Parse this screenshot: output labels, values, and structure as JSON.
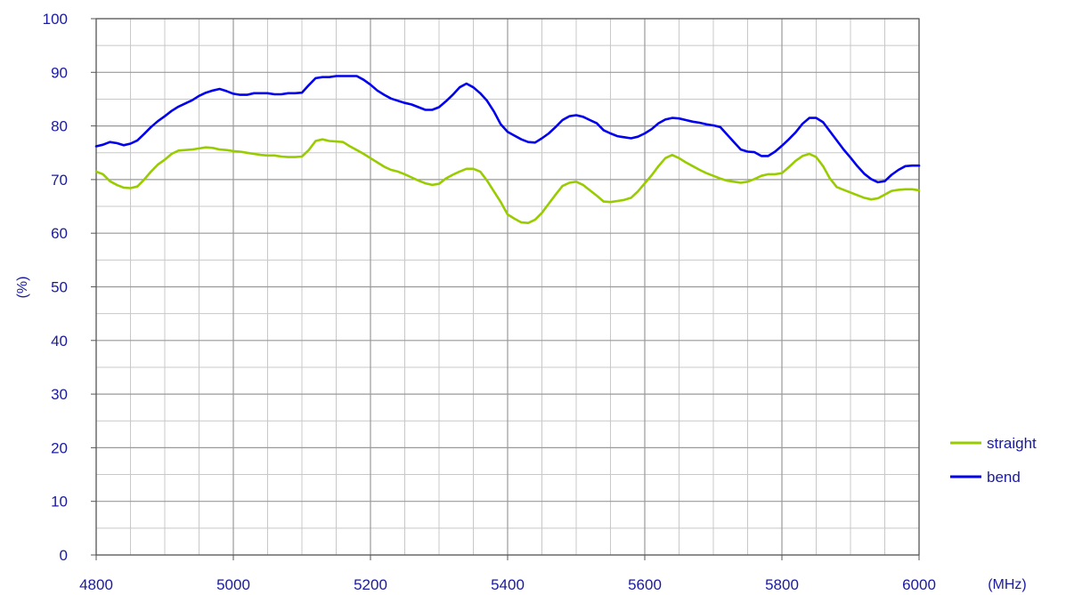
{
  "chart_data": {
    "type": "line",
    "xlabel": "(MHz)",
    "ylabel": "(%)",
    "xlim": [
      4800,
      6000
    ],
    "ylim": [
      0,
      100
    ],
    "x_ticks": [
      4800,
      5000,
      5200,
      5400,
      5600,
      5800,
      6000
    ],
    "y_ticks": [
      0,
      10,
      20,
      30,
      40,
      50,
      60,
      70,
      80,
      90,
      100
    ],
    "x_minor_step": 50,
    "y_minor_step": 5,
    "grid": true,
    "legend_position": "right",
    "series": [
      {
        "name": "straight",
        "color": "#99cc00",
        "x": [
          4800,
          4810,
          4820,
          4830,
          4840,
          4850,
          4860,
          4870,
          4880,
          4890,
          4900,
          4910,
          4920,
          4930,
          4940,
          4950,
          4960,
          4970,
          4980,
          4990,
          5000,
          5010,
          5020,
          5030,
          5040,
          5050,
          5060,
          5070,
          5080,
          5090,
          5100,
          5110,
          5120,
          5130,
          5140,
          5150,
          5160,
          5170,
          5180,
          5190,
          5200,
          5210,
          5220,
          5230,
          5240,
          5250,
          5260,
          5270,
          5280,
          5290,
          5300,
          5310,
          5320,
          5330,
          5340,
          5350,
          5360,
          5370,
          5380,
          5390,
          5400,
          5410,
          5420,
          5430,
          5440,
          5450,
          5460,
          5470,
          5480,
          5490,
          5500,
          5510,
          5520,
          5530,
          5540,
          5550,
          5560,
          5570,
          5580,
          5590,
          5600,
          5610,
          5620,
          5630,
          5640,
          5650,
          5660,
          5670,
          5680,
          5690,
          5700,
          5710,
          5720,
          5730,
          5740,
          5750,
          5760,
          5770,
          5780,
          5790,
          5800,
          5810,
          5820,
          5830,
          5840,
          5850,
          5860,
          5870,
          5880,
          5890,
          5900,
          5910,
          5920,
          5930,
          5940,
          5950,
          5960,
          5970,
          5980,
          5990,
          6000
        ],
        "values": [
          71.5,
          71,
          69.7,
          69,
          68.5,
          68.4,
          68.7,
          70,
          71.5,
          72.8,
          73.7,
          74.8,
          75.4,
          75.5,
          75.6,
          75.8,
          76,
          75.9,
          75.6,
          75.5,
          75.3,
          75.2,
          75,
          74.8,
          74.6,
          74.5,
          74.5,
          74.3,
          74.2,
          74.2,
          74.3,
          75.5,
          77.2,
          77.5,
          77.2,
          77.1,
          77,
          76.2,
          75.5,
          74.8,
          74,
          73.2,
          72.4,
          71.8,
          71.5,
          71,
          70.4,
          69.8,
          69.3,
          69,
          69.2,
          70.2,
          70.9,
          71.5,
          72,
          72,
          71.5,
          69.8,
          67.8,
          65.8,
          63.5,
          62.7,
          62,
          61.9,
          62.5,
          63.8,
          65.5,
          67.2,
          68.8,
          69.4,
          69.6,
          69,
          68,
          67,
          65.9,
          65.8,
          66,
          66.2,
          66.6,
          67.8,
          69.3,
          70.8,
          72.5,
          74,
          74.6,
          74,
          73.2,
          72.5,
          71.8,
          71.2,
          70.7,
          70.2,
          69.8,
          69.6,
          69.4,
          69.6,
          70.1,
          70.7,
          71,
          71,
          71.2,
          72.3,
          73.5,
          74.4,
          74.8,
          74.2,
          72.5,
          70.2,
          68.6,
          68.1,
          67.6,
          67.1,
          66.6,
          66.3,
          66.5,
          67.2,
          67.9,
          68.1,
          68.2,
          68.2,
          68
        ]
      },
      {
        "name": "bend",
        "color": "#0000ee",
        "x": [
          4800,
          4810,
          4820,
          4830,
          4840,
          4850,
          4860,
          4870,
          4880,
          4890,
          4900,
          4910,
          4920,
          4930,
          4940,
          4950,
          4960,
          4970,
          4980,
          4990,
          5000,
          5010,
          5020,
          5030,
          5040,
          5050,
          5060,
          5070,
          5080,
          5090,
          5100,
          5110,
          5120,
          5130,
          5140,
          5150,
          5160,
          5170,
          5180,
          5190,
          5200,
          5210,
          5220,
          5230,
          5240,
          5250,
          5260,
          5270,
          5280,
          5290,
          5300,
          5310,
          5320,
          5330,
          5340,
          5350,
          5360,
          5370,
          5380,
          5390,
          5400,
          5410,
          5420,
          5430,
          5440,
          5450,
          5460,
          5470,
          5480,
          5490,
          5500,
          5510,
          5520,
          5530,
          5540,
          5550,
          5560,
          5570,
          5580,
          5590,
          5600,
          5610,
          5620,
          5630,
          5640,
          5650,
          5660,
          5670,
          5680,
          5690,
          5700,
          5710,
          5720,
          5730,
          5740,
          5750,
          5760,
          5770,
          5780,
          5790,
          5800,
          5810,
          5820,
          5830,
          5840,
          5850,
          5860,
          5870,
          5880,
          5890,
          5900,
          5910,
          5920,
          5930,
          5940,
          5950,
          5960,
          5970,
          5980,
          5990,
          6000
        ],
        "values": [
          76.2,
          76.5,
          77,
          76.8,
          76.4,
          76.7,
          77.3,
          78.5,
          79.8,
          80.9,
          81.8,
          82.8,
          83.6,
          84.2,
          84.8,
          85.6,
          86.2,
          86.6,
          86.9,
          86.5,
          86,
          85.8,
          85.8,
          86.1,
          86.1,
          86.1,
          85.9,
          85.9,
          86.1,
          86.1,
          86.2,
          87.6,
          88.9,
          89.1,
          89.1,
          89.3,
          89.3,
          89.3,
          89.3,
          88.6,
          87.7,
          86.6,
          85.8,
          85.1,
          84.7,
          84.3,
          84,
          83.5,
          83,
          83,
          83.5,
          84.6,
          85.8,
          87.2,
          87.9,
          87.2,
          86.1,
          84.7,
          82.7,
          80.3,
          78.9,
          78.2,
          77.5,
          77,
          76.9,
          77.7,
          78.6,
          79.8,
          81.1,
          81.8,
          82,
          81.7,
          81.1,
          80.5,
          79.2,
          78.6,
          78.1,
          77.9,
          77.7,
          78,
          78.6,
          79.4,
          80.5,
          81.2,
          81.5,
          81.4,
          81.1,
          80.8,
          80.6,
          80.3,
          80.1,
          79.8,
          78.4,
          77,
          75.6,
          75.2,
          75.1,
          74.4,
          74.4,
          75.2,
          76.3,
          77.5,
          78.8,
          80.4,
          81.5,
          81.5,
          80.7,
          79,
          77.3,
          75.6,
          74.1,
          72.5,
          71.1,
          70.1,
          69.5,
          69.7,
          70.9,
          71.8,
          72.5,
          72.6,
          72.6
        ]
      }
    ]
  }
}
